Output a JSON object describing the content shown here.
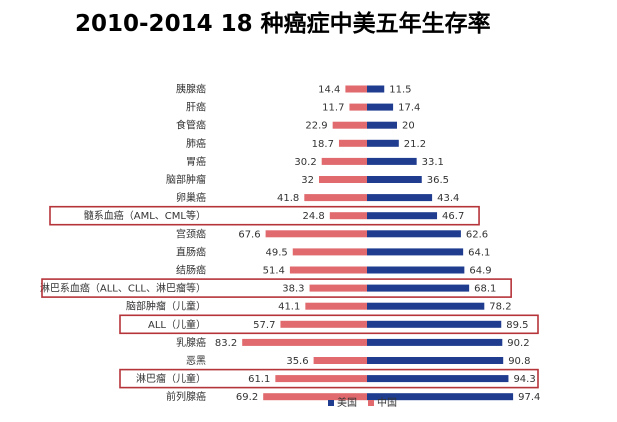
{
  "title": "2010-2014 18 种癌症中美五年生存率",
  "colors": {
    "us": "#1f3c8f",
    "cn": "#e06a6e",
    "highlight": "#b5343a"
  },
  "chart_data": {
    "type": "bar",
    "orientation": "horizontal-diverging",
    "title": "2010-2014 18 种癌症中美五年生存率",
    "categories": [
      "胰腺癌",
      "肝癌",
      "食管癌",
      "肺癌",
      "胃癌",
      "脑部肿瘤",
      "卵巢癌",
      "髓系血癌（AML、CML等）",
      "宫颈癌",
      "直肠癌",
      "结肠癌",
      "淋巴系血癌（ALL、CLL、淋巴瘤等）",
      "脑部肿瘤（儿童）",
      "ALL（儿童）",
      "乳腺癌",
      "恶黑",
      "淋巴瘤（儿童）",
      "前列腺癌"
    ],
    "series": [
      {
        "name": "中国",
        "side": "left",
        "values": [
          14.4,
          11.7,
          22.9,
          18.7,
          30.2,
          32,
          41.8,
          24.8,
          67.6,
          49.5,
          51.4,
          38.3,
          41.1,
          57.7,
          83.2,
          35.6,
          61.1,
          69.2
        ]
      },
      {
        "name": "美国",
        "side": "right",
        "values": [
          11.5,
          17.4,
          20,
          21.2,
          33.1,
          36.5,
          43.4,
          46.7,
          62.6,
          64.1,
          64.9,
          68.1,
          78.2,
          89.5,
          90.2,
          90.8,
          94.3,
          97.4
        ]
      }
    ],
    "highlighted_categories": [
      "髓系血癌（AML、CML等）",
      "淋巴系血癌（ALL、CLL、淋巴瘤等）",
      "ALL（儿童）",
      "淋巴瘤（儿童）"
    ],
    "legend": {
      "position": "bottom-right",
      "entries": [
        "美国",
        "中国"
      ]
    }
  }
}
